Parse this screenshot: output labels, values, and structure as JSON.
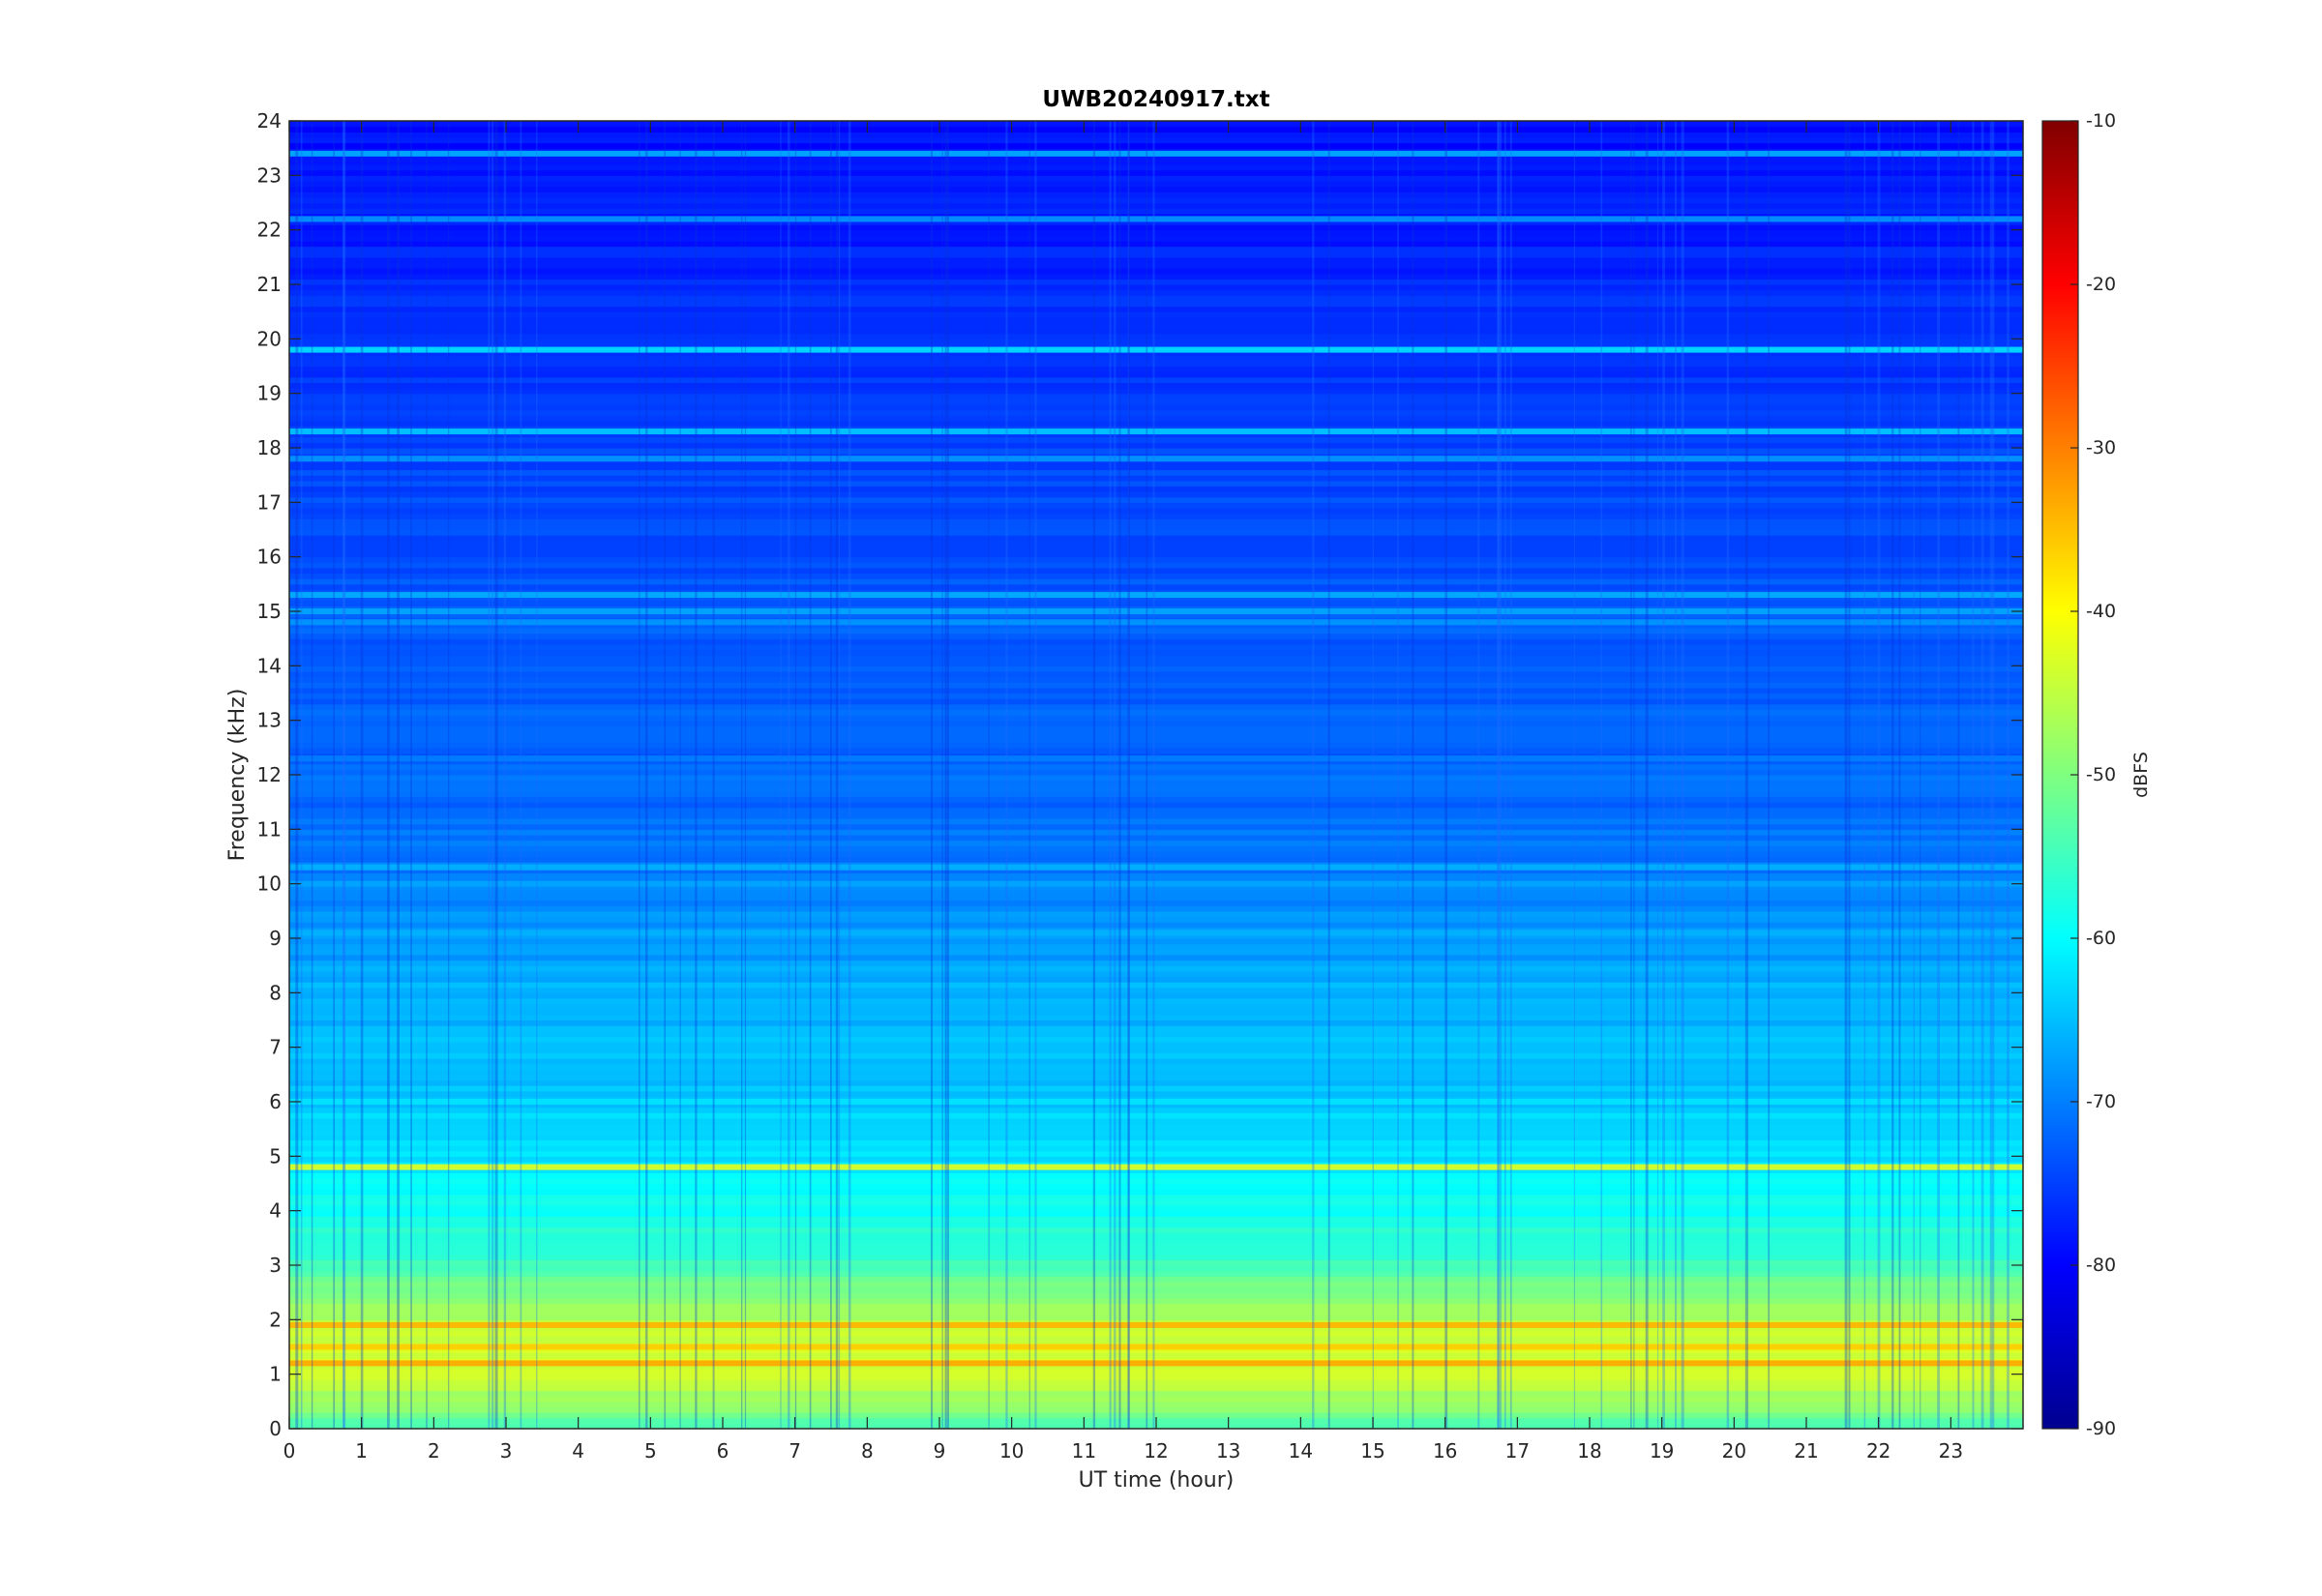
{
  "chart_data": {
    "type": "heatmap",
    "title": "UWB20240917.txt",
    "xlabel": "UT time (hour)",
    "ylabel": "Frequency (kHz)",
    "xlim": [
      0,
      24
    ],
    "ylim": [
      0,
      24
    ],
    "x_ticks": [
      0,
      1,
      2,
      3,
      4,
      5,
      6,
      7,
      8,
      9,
      10,
      11,
      12,
      13,
      14,
      15,
      16,
      17,
      18,
      19,
      20,
      21,
      22,
      23
    ],
    "x_tick_labels": [
      "0",
      "1",
      "2",
      "3",
      "4",
      "5",
      "6",
      "7",
      "8",
      "9",
      "10",
      "11",
      "12",
      "13",
      "14",
      "15",
      "16",
      "17",
      "18",
      "19",
      "20",
      "21",
      "22",
      "23"
    ],
    "y_ticks": [
      0,
      1,
      2,
      3,
      4,
      5,
      6,
      7,
      8,
      9,
      10,
      11,
      12,
      13,
      14,
      15,
      16,
      17,
      18,
      19,
      20,
      21,
      22,
      23,
      24
    ],
    "y_tick_labels": [
      "0",
      "1",
      "2",
      "3",
      "4",
      "5",
      "6",
      "7",
      "8",
      "9",
      "10",
      "11",
      "12",
      "13",
      "14",
      "15",
      "16",
      "17",
      "18",
      "19",
      "20",
      "21",
      "22",
      "23",
      "24"
    ],
    "colorbar": {
      "label": "dBFS",
      "range": [
        -90,
        -10
      ],
      "ticks": [
        -90,
        -80,
        -70,
        -60,
        -50,
        -40,
        -30,
        -20,
        -10
      ],
      "tick_labels": [
        "-90",
        "-80",
        "-70",
        "-60",
        "-50",
        "-40",
        "-30",
        "-20",
        "-10"
      ],
      "colormap": "jet"
    },
    "background_profile": {
      "freq_khz": [
        0.0,
        0.5,
        1.0,
        1.5,
        2.0,
        2.5,
        3.0,
        3.5,
        4.0,
        4.5,
        5.0,
        6.0,
        7.0,
        8.0,
        9.0,
        10.0,
        12.0,
        15.0,
        18.0,
        20.0,
        22.0,
        24.0
      ],
      "level_dbfs": [
        -55,
        -48,
        -44,
        -43,
        -46,
        -50,
        -55,
        -57,
        -59,
        -60,
        -62,
        -64,
        -65,
        -66,
        -68,
        -70,
        -72,
        -73,
        -75,
        -76,
        -78,
        -79
      ]
    },
    "tonal_lines": [
      {
        "freq_khz": 19.8,
        "level_dbfs": -62
      },
      {
        "freq_khz": 18.3,
        "level_dbfs": -64
      },
      {
        "freq_khz": 17.8,
        "level_dbfs": -68
      },
      {
        "freq_khz": 23.4,
        "level_dbfs": -66
      },
      {
        "freq_khz": 22.2,
        "level_dbfs": -68
      },
      {
        "freq_khz": 15.3,
        "level_dbfs": -66
      },
      {
        "freq_khz": 15.0,
        "level_dbfs": -67
      },
      {
        "freq_khz": 14.8,
        "level_dbfs": -68
      },
      {
        "freq_khz": 12.3,
        "level_dbfs": -70
      },
      {
        "freq_khz": 10.3,
        "level_dbfs": -66
      },
      {
        "freq_khz": 10.0,
        "level_dbfs": -67
      },
      {
        "freq_khz": 9.1,
        "level_dbfs": -66
      },
      {
        "freq_khz": 6.0,
        "level_dbfs": -62
      },
      {
        "freq_khz": 4.8,
        "level_dbfs": -42
      },
      {
        "freq_khz": 1.9,
        "level_dbfs": -34
      },
      {
        "freq_khz": 1.5,
        "level_dbfs": -36
      },
      {
        "freq_khz": 1.2,
        "level_dbfs": -33
      }
    ]
  }
}
